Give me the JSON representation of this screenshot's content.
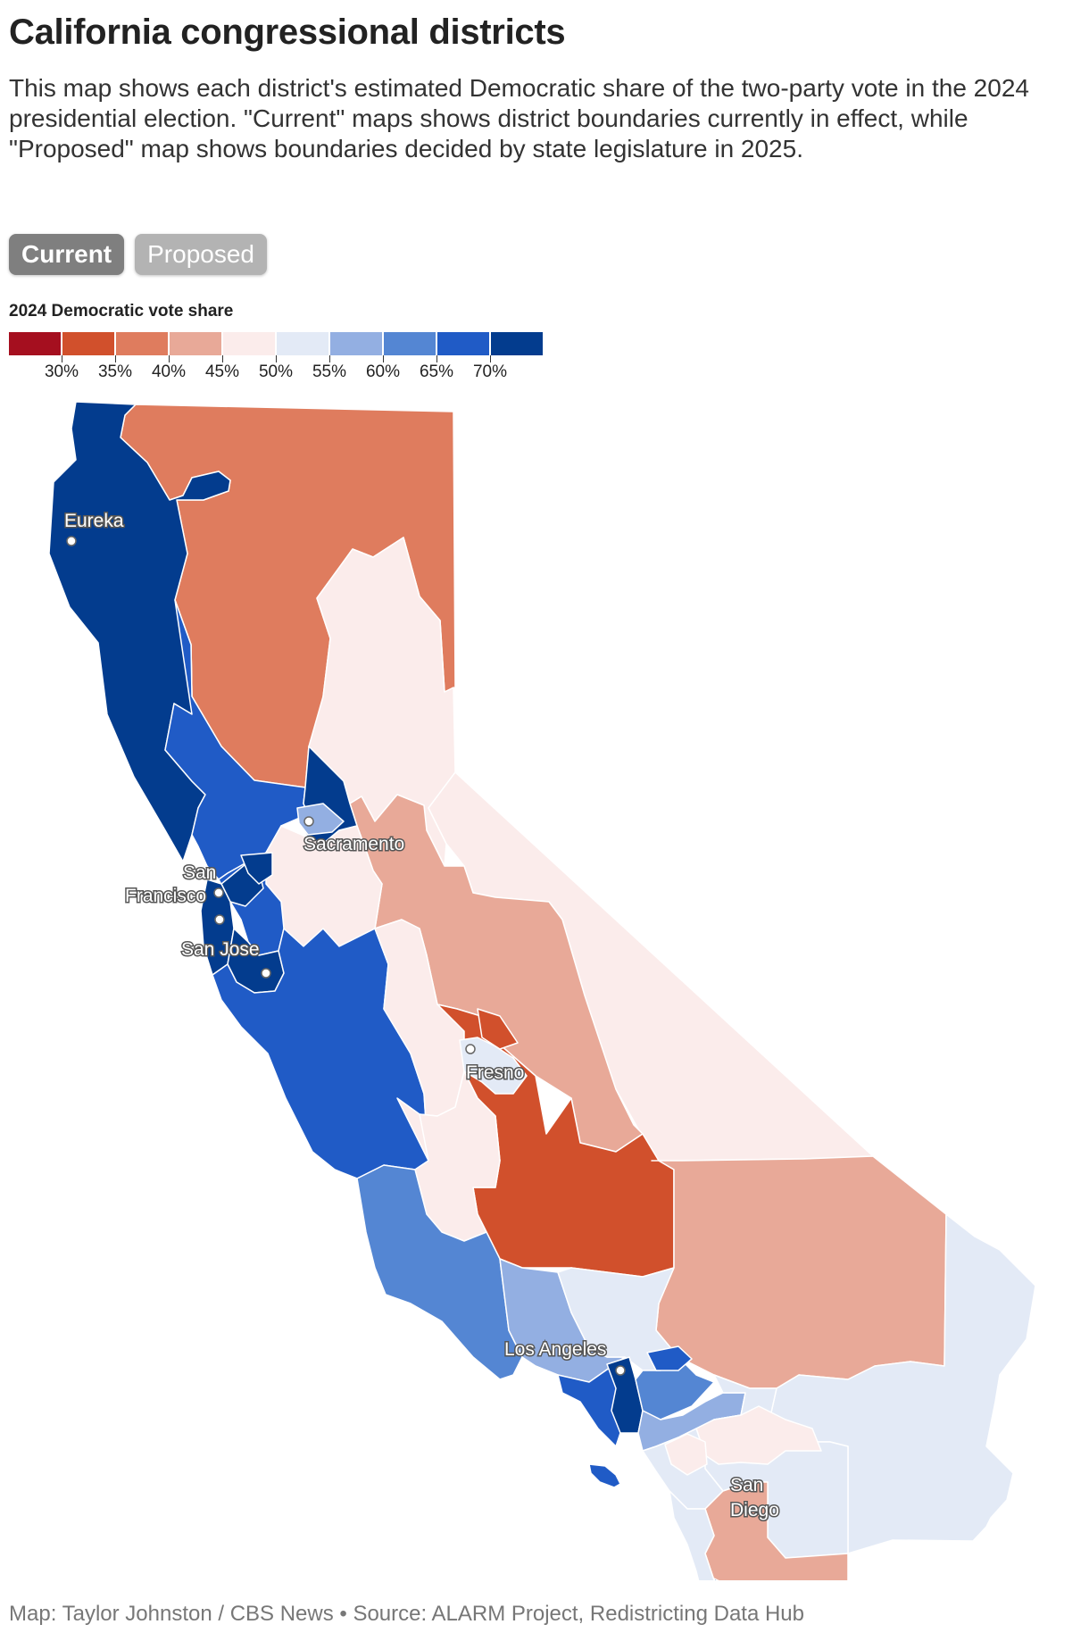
{
  "title": "California congressional districts",
  "description": "This map shows each district's estimated Democratic share of the two-party vote in the 2024 presidential election. \"Current\" maps shows district boundaries currently in effect, while \"Proposed\" map shows boundaries decided by state legislature in 2025.",
  "toggle": {
    "current_label": "Current",
    "proposed_label": "Proposed",
    "selected": "Current"
  },
  "legend": {
    "title": "2024 Democratic vote share",
    "colors": [
      "#a50f1f",
      "#d1502c",
      "#df7c5e",
      "#e8a998",
      "#fbeceb",
      "#e3eaf6",
      "#93afe2",
      "#5486d3",
      "#205bc6",
      "#033c8e"
    ],
    "ticks": [
      "30%",
      "35%",
      "40%",
      "45%",
      "50%",
      "55%",
      "60%",
      "65%",
      "70%"
    ]
  },
  "cities": [
    {
      "name": "Eureka",
      "lines": [
        "Eureka"
      ]
    },
    {
      "name": "Sacramento",
      "lines": [
        "Sacramento"
      ]
    },
    {
      "name": "San Francisco",
      "lines": [
        "San",
        "Francisco"
      ]
    },
    {
      "name": "San Jose",
      "lines": [
        "San Jose"
      ]
    },
    {
      "name": "Fresno",
      "lines": [
        "Fresno"
      ]
    },
    {
      "name": "Los Angeles",
      "lines": [
        "Los Angeles"
      ]
    },
    {
      "name": "San Diego",
      "lines": [
        "San",
        "Diego"
      ]
    }
  ],
  "credit": "Map: Taylor Johnston / CBS News • Source: ALARM Project, Redistricting Data Hub"
}
